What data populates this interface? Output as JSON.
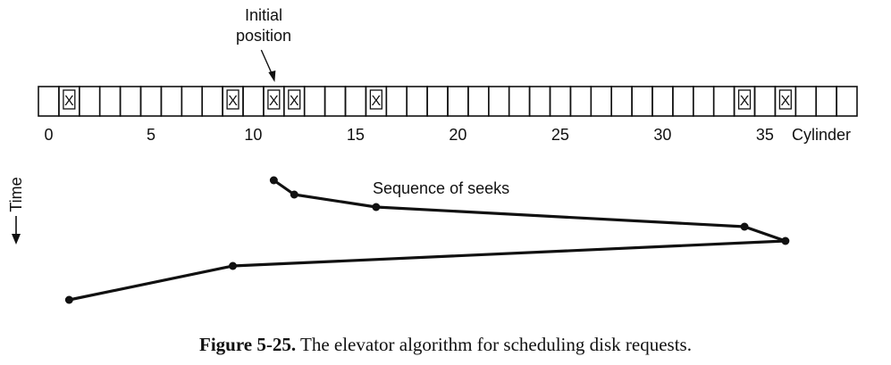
{
  "annotation": {
    "initial_line1": "Initial",
    "initial_line2": "position",
    "initial_cylinder": 11
  },
  "cylinders": {
    "count": 40,
    "requested": [
      1,
      9,
      11,
      12,
      16,
      34,
      36
    ],
    "request_mark": "X",
    "tick_labels": [
      "0",
      "5",
      "10",
      "15",
      "20",
      "25",
      "30",
      "35"
    ],
    "tick_values": [
      0,
      5,
      10,
      15,
      20,
      25,
      30,
      35
    ],
    "axis_label": "Cylinder"
  },
  "time_label": "Time",
  "seek_label": "Sequence of seeks",
  "seeks": [
    11,
    12,
    16,
    34,
    36,
    9,
    1
  ],
  "caption": {
    "number": "Figure 5-25.",
    "text": "The elevator algorithm for scheduling disk requests."
  },
  "colors": {
    "ink": "#111111",
    "background": "#ffffff"
  }
}
